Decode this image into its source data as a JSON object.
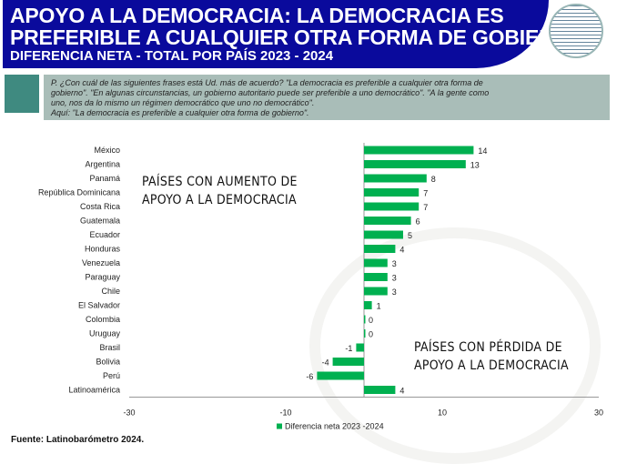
{
  "header": {
    "title_line1": "APOYO A LA DEMOCRACIA: LA DEMOCRACIA ES",
    "title_line2": "PREFERIBLE A CUALQUIER OTRA FORMA DE GOBIERNO",
    "subtitle": "DIFERENCIA NETA  -  TOTAL POR PAÍS  2023 - 2024",
    "logo_text": "LATINOBARÓMETRO 1995 - 2024"
  },
  "question": {
    "line1": "P. ¿Con cuál de las siguientes frases está Ud. más de acuerdo? \"La democracia es preferible a cualquier otra forma de",
    "line2": "gobierno\". \"En algunas circunstancias, un gobierno autoritario puede ser preferible a uno democrático\". \"A la gente como",
    "line3": "uno, nos da lo mismo un régimen democrático que uno no democrático\".",
    "line4": "Aquí: \"La democracia es preferible a cualquier otra forma de gobierno\"."
  },
  "annotations": {
    "increase_line1": "PAÍSES CON AUMENTO DE",
    "increase_line2": "APOYO A LA DEMOCRACIA",
    "decrease_line1": "PAÍSES CON PÉRDIDA DE",
    "decrease_line2": "APOYO A LA DEMOCRACIA"
  },
  "source": "Fuente: Latinobarómetro 2024.",
  "colors": {
    "bar": "#00b050",
    "header": "#0a0a9c"
  },
  "chart_data": {
    "type": "bar",
    "orientation": "horizontal",
    "categories": [
      "México",
      "Argentina",
      "Panamá",
      "República Dominicana",
      "Costa Rica",
      "Guatemala",
      "Ecuador",
      "Honduras",
      "Venezuela",
      "Paraguay",
      "Chile",
      "El Salvador",
      "Colombia",
      "Uruguay",
      "Brasil",
      "Bolivia",
      "Perú",
      "Latinoamérica"
    ],
    "series": [
      {
        "name": "Diferencia neta 2023 -2024",
        "values": [
          14,
          13,
          8,
          7,
          7,
          6,
          5,
          4,
          3,
          3,
          3,
          1,
          0,
          0,
          -1,
          -4,
          -6,
          4
        ]
      }
    ],
    "xlim": [
      -30,
      30
    ],
    "xticks": [
      -30,
      -10,
      10,
      30
    ],
    "legend": "bottom"
  }
}
